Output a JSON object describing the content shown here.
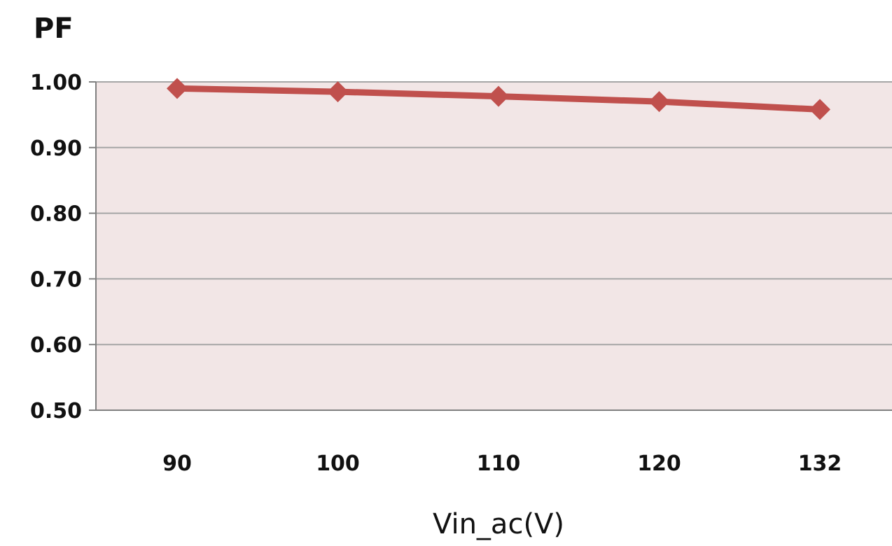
{
  "chart_data": {
    "type": "line",
    "title": "",
    "ylabel": "PF",
    "xlabel": "Vin_ac(V)",
    "categories": [
      "90",
      "100",
      "110",
      "120",
      "132"
    ],
    "yticks": [
      "0.50",
      "0.60",
      "0.70",
      "0.80",
      "0.90",
      "1.00"
    ],
    "ylim": [
      0.5,
      1.0
    ],
    "grid": true,
    "legend": "none",
    "series": [
      {
        "values": [
          0.99,
          0.985,
          0.978,
          0.97,
          0.958
        ],
        "color": "#c0504d",
        "marker": "diamond"
      }
    ],
    "plot_background": "#f2e6e6",
    "gridline_color": "#a6a6a6",
    "axis_color": "#808080"
  }
}
